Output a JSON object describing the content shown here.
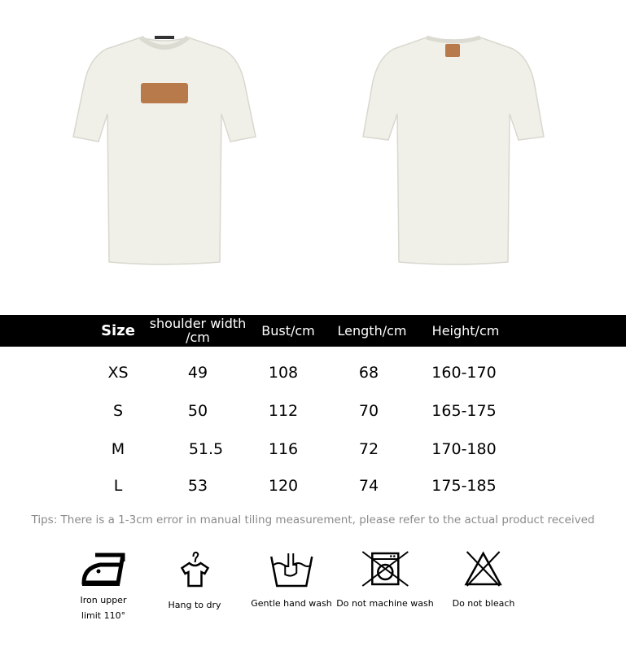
{
  "product": {
    "views": [
      "front-view",
      "back-view"
    ],
    "shirt_color": "#f0efe8",
    "patch_color": "#b87a4b"
  },
  "size_table": {
    "headers": [
      "Size",
      "shoulder width /cm",
      "Bust/cm",
      "Length/cm",
      "Height/cm"
    ],
    "header_lines": {
      "shoulder_1": "shoulder width",
      "shoulder_2": "/cm"
    },
    "rows": [
      [
        "XS",
        "49",
        "108",
        "68",
        "160-170"
      ],
      [
        "S",
        "50",
        "112",
        "70",
        "165-175"
      ],
      [
        "M",
        "51.5",
        "116",
        "72",
        "170-180"
      ],
      [
        "L",
        "53",
        "120",
        "74",
        "175-185"
      ]
    ]
  },
  "tips": "Tips: There is a 1-3cm error in manual tiling measurement, please refer to the actual product received",
  "care": [
    {
      "icon": "iron-icon",
      "label_1": "Iron upper",
      "label_2": "limit 110°"
    },
    {
      "icon": "hanger-shirt-icon",
      "label_1": "Hang to dry"
    },
    {
      "icon": "hand-wash-icon",
      "label_1": "Gentle hand wash"
    },
    {
      "icon": "no-machine-wash-icon",
      "label_1": "Do not machine wash"
    },
    {
      "icon": "no-bleach-icon",
      "label_1": "Do not bleach"
    }
  ]
}
